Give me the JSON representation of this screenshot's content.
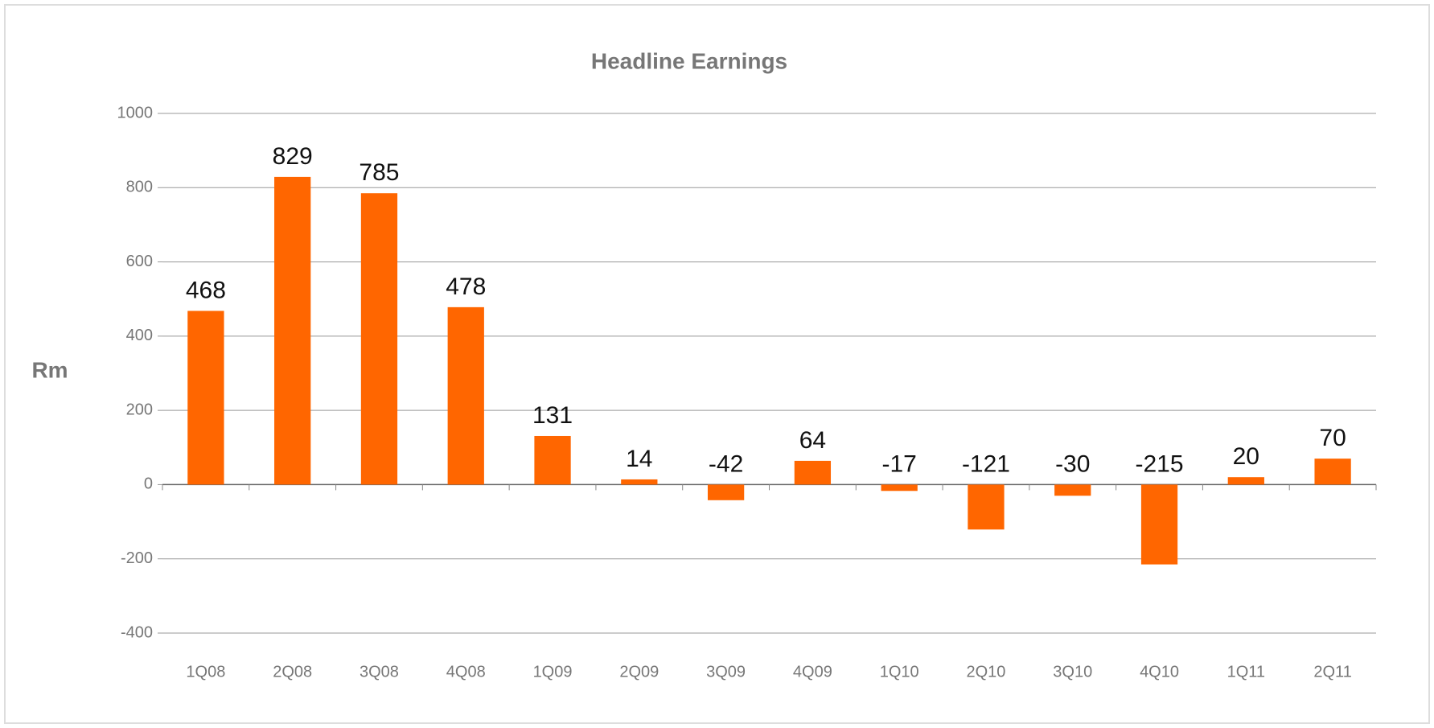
{
  "chart_data": {
    "type": "bar",
    "title": "Headline Earnings",
    "y_label": "Rm",
    "categories": [
      "1Q08",
      "2Q08",
      "3Q08",
      "4Q08",
      "1Q09",
      "2Q09",
      "3Q09",
      "4Q09",
      "1Q10",
      "2Q10",
      "3Q10",
      "4Q10",
      "1Q11",
      "2Q11"
    ],
    "values": [
      468,
      829,
      785,
      478,
      131,
      14,
      -42,
      64,
      -17,
      -121,
      -30,
      -215,
      20,
      70
    ],
    "color": "#ff6600",
    "ylim": [
      -400,
      1000
    ],
    "yticks": [
      -400,
      -200,
      0,
      200,
      400,
      600,
      800,
      1000
    ],
    "grid": true
  }
}
